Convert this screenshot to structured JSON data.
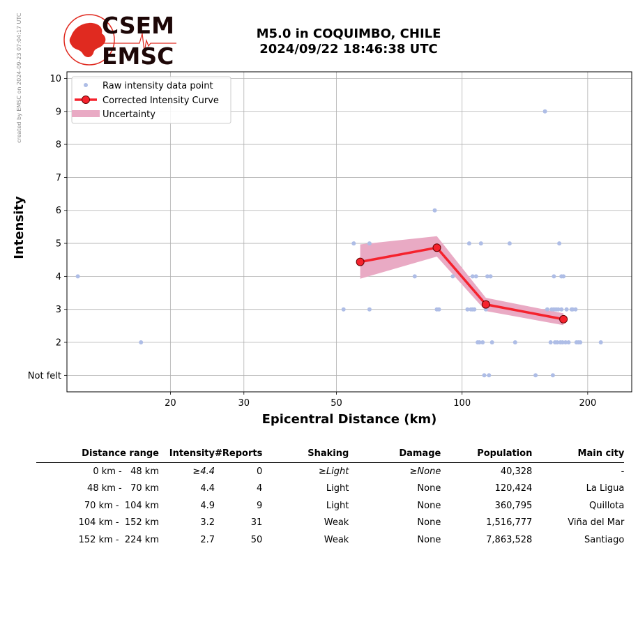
{
  "stamp": "created by EMSC on 2024-09-23 07:04:17 UTC",
  "logo": {
    "line1": "CSEM",
    "line2": "EMSC"
  },
  "title": {
    "line1": "M5.0 in COQUIMBO, CHILE",
    "line2": "2024/09/22 18:46:38 UTC"
  },
  "colors": {
    "raw_points": "#aebde6",
    "curve": "#f5222d",
    "uncertainty": "#e9aac4",
    "marker_edge": "#660000",
    "grid": "#b0b0b0"
  },
  "chart_data": {
    "type": "scatter",
    "xscale": "log",
    "xlim": [
      11.3,
      255
    ],
    "ylim": [
      0.5,
      10.2
    ],
    "xlabel": "Epicentral Distance (km)",
    "ylabel": "Intensity",
    "xticks": [
      20,
      30,
      50,
      100,
      200
    ],
    "xticklabels": [
      "20",
      "30",
      "50",
      "100",
      "200"
    ],
    "yticks": [
      1,
      2,
      3,
      4,
      5,
      6,
      7,
      8,
      9,
      10
    ],
    "yticklabels": [
      "Not felt",
      "2",
      "3",
      "4",
      "5",
      "6",
      "7",
      "8",
      "9",
      "10"
    ],
    "grid": true,
    "legend": {
      "position": "top-left",
      "entries": [
        "Raw intensity data point",
        "Corrected Intensity Curve",
        "Uncertainty"
      ]
    },
    "raw_points": {
      "x": [
        12,
        17,
        52,
        55,
        60,
        60,
        77,
        86,
        87,
        88,
        95,
        103,
        104,
        105,
        106,
        106,
        107,
        108,
        109,
        110,
        111,
        112,
        113,
        114,
        115,
        116,
        117,
        118,
        130,
        134,
        150,
        158,
        160,
        163,
        164,
        165,
        166,
        166,
        167,
        168,
        169,
        170,
        171,
        172,
        173,
        173,
        174,
        175,
        177,
        178,
        180,
        183,
        184,
        187,
        188,
        190,
        192,
        215
      ],
      "y": [
        4,
        2,
        3,
        5,
        5,
        3,
        4,
        6,
        3,
        3,
        4,
        3,
        5,
        3,
        4,
        3,
        3,
        4,
        2,
        2,
        5,
        2,
        1,
        3,
        4,
        1,
        4,
        2,
        5,
        2,
        1,
        9,
        3,
        2,
        3,
        1,
        4,
        3,
        2,
        3,
        2,
        3,
        5,
        2,
        3,
        4,
        2,
        4,
        2,
        3,
        2,
        3,
        3,
        3,
        2,
        2,
        2,
        2
      ]
    },
    "series": [
      {
        "name": "Corrected Intensity Curve",
        "x": [
          57,
          87,
          114,
          175
        ],
        "y": [
          4.44,
          4.87,
          3.15,
          2.7
        ]
      }
    ],
    "uncertainty": {
      "name": "Uncertainty",
      "x": [
        57,
        87,
        114,
        175
      ],
      "upper": [
        4.97,
        5.22,
        3.35,
        2.88
      ],
      "lower": [
        3.93,
        4.6,
        2.95,
        2.52
      ]
    }
  },
  "table": {
    "headers": [
      "Distance range",
      "Intensity",
      "#Reports",
      "Shaking",
      "Damage",
      "Population",
      "Main city"
    ],
    "rows": [
      [
        "0 km -   48 km",
        "≥4.4",
        "0",
        "≥Light",
        "≥None",
        "40,328",
        "-"
      ],
      [
        "48 km -   70 km",
        "4.4",
        "4",
        "Light",
        "None",
        "120,424",
        "La Ligua"
      ],
      [
        "70 km -  104 km",
        "4.9",
        "9",
        "Light",
        "None",
        "360,795",
        "Quillota"
      ],
      [
        "104 km -  152 km",
        "3.2",
        "31",
        "Weak",
        "None",
        "1,516,777",
        "Viña del Mar"
      ],
      [
        "152 km -  224 km",
        "2.7",
        "50",
        "Weak",
        "None",
        "7,863,528",
        "Santiago"
      ]
    ]
  }
}
